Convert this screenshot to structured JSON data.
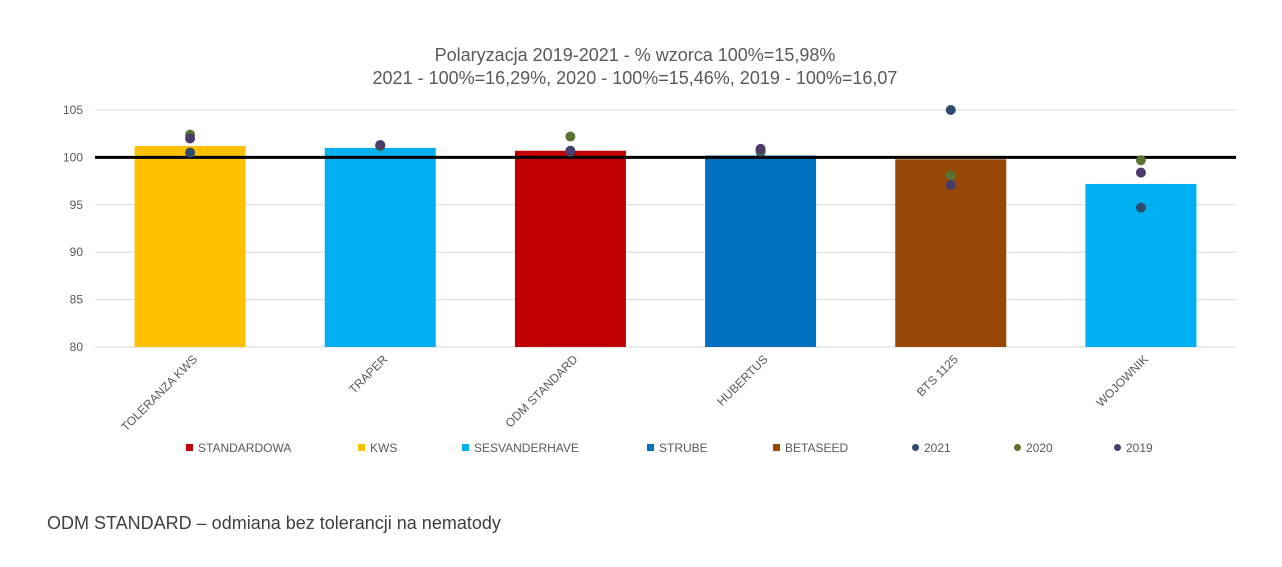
{
  "chart_data": {
    "type": "bar",
    "title_lines": [
      "Polaryzacja 2019-2021 - % wzorca 100%=15,98%",
      "2021 - 100%=16,29%, 2020 - 100%=15,46%, 2019 - 100%=16,07"
    ],
    "categories": [
      "TOLERANZA KWS",
      "TRAPER",
      "ODM STANDARD",
      "HUBERTUS",
      "BTS 1125",
      "WOJOWNIK"
    ],
    "ylim": [
      80,
      105
    ],
    "yticks": [
      "80",
      "85",
      "90",
      "95",
      "100",
      "105"
    ],
    "grid": true,
    "reference_line": 100,
    "bars": [
      {
        "value": 101.2,
        "company": "KWS"
      },
      {
        "value": 101.0,
        "company": "SESVANDERHAVE"
      },
      {
        "value": 100.7,
        "company": "STANDARDOWA"
      },
      {
        "value": 100.2,
        "company": "STRUBE"
      },
      {
        "value": 99.8,
        "company": "BETASEED"
      },
      {
        "value": 97.2,
        "company": "SESVANDERHAVE"
      }
    ],
    "points": [
      {
        "name": "2021",
        "values": [
          100.5,
          101.3,
          100.7,
          100.6,
          105.0,
          94.7
        ]
      },
      {
        "name": "2020",
        "values": [
          102.4,
          101.2,
          102.2,
          100.8,
          98.1,
          99.7
        ]
      },
      {
        "name": "2019",
        "values": [
          102.0,
          101.3,
          100.6,
          100.9,
          97.1,
          98.4
        ]
      }
    ],
    "legend": {
      "position": "bottom",
      "items": [
        {
          "label": "STANDARDOWA",
          "kind": "square",
          "color": "#C00000"
        },
        {
          "label": "KWS",
          "kind": "square",
          "color": "#FFC000"
        },
        {
          "label": "SESVANDERHAVE",
          "kind": "square",
          "color": "#00B0F0"
        },
        {
          "label": "STRUBE",
          "kind": "square",
          "color": "#0070C0"
        },
        {
          "label": "BETASEED",
          "kind": "square",
          "color": "#974806"
        },
        {
          "label": "2021",
          "kind": "dot",
          "color": "#2E4A6E"
        },
        {
          "label": "2020",
          "kind": "dot",
          "color": "#5A7232"
        },
        {
          "label": "2019",
          "kind": "dot",
          "color": "#4B3B6A"
        }
      ]
    },
    "company_colors": {
      "STANDARDOWA": "#C00000",
      "KWS": "#FFC000",
      "SESVANDERHAVE": "#00B0F0",
      "STRUBE": "#0070C0",
      "BETASEED": "#974806"
    },
    "point_colors": {
      "2021": "#2E4A6E",
      "2020": "#5A7232",
      "2019": "#4B3B6A"
    }
  },
  "footnote": "ODM STANDARD – odmiana bez tolerancji na nematody"
}
